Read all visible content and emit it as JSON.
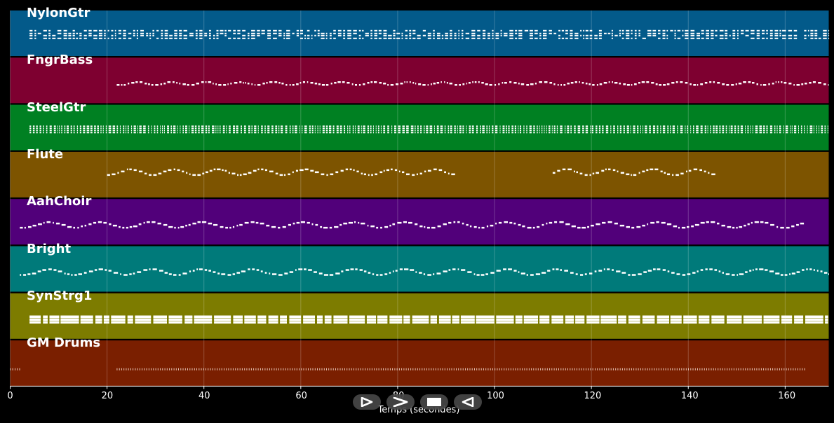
{
  "tracks": [
    {
      "name": "NylonGtr",
      "color": "#035a8a",
      "pattern": "dense-chords"
    },
    {
      "name": "FngrBass",
      "color": "#7e0030",
      "pattern": "bassline"
    },
    {
      "name": "SteelGtr",
      "color": "#008022",
      "pattern": "strum-blocks"
    },
    {
      "name": "Flute",
      "color": "#7d5400",
      "pattern": "melody-sparse"
    },
    {
      "name": "AahChoir",
      "color": "#51007a",
      "pattern": "melody-full"
    },
    {
      "name": "Bright",
      "color": "#007a7a",
      "pattern": "melody-full"
    },
    {
      "name": "SynStrg1",
      "color": "#7d7c00",
      "pattern": "pads"
    },
    {
      "name": "GM Drums",
      "color": "#7a1f00",
      "pattern": "drums"
    }
  ],
  "chart_data": {
    "type": "timeline",
    "xlabel": "Temps (secondes)",
    "xlim": [
      0,
      169
    ],
    "xticks": [
      0,
      20,
      40,
      60,
      80,
      100,
      120,
      140,
      160
    ],
    "grid": true,
    "series": [
      {
        "name": "NylonGtr",
        "active": [
          [
            4,
            169
          ]
        ]
      },
      {
        "name": "FngrBass",
        "active": [
          [
            22,
            169
          ]
        ]
      },
      {
        "name": "SteelGtr",
        "active": [
          [
            4,
            169
          ]
        ]
      },
      {
        "name": "Flute",
        "active": [
          [
            20,
            92
          ],
          [
            112,
            146
          ]
        ]
      },
      {
        "name": "AahChoir",
        "active": [
          [
            2,
            164
          ]
        ]
      },
      {
        "name": "Bright",
        "active": [
          [
            2,
            169
          ]
        ]
      },
      {
        "name": "SynStrg1",
        "active": [
          [
            4,
            169
          ]
        ]
      },
      {
        "name": "GM Drums",
        "active": [
          [
            0,
            2
          ],
          [
            22,
            164
          ]
        ]
      }
    ]
  },
  "controls": [
    {
      "name": "play-button",
      "icon": "play-icon"
    },
    {
      "name": "forward-button",
      "icon": "forward-icon"
    },
    {
      "name": "stop-button",
      "icon": "stop-icon"
    },
    {
      "name": "rewind-button",
      "icon": "rewind-icon"
    }
  ]
}
